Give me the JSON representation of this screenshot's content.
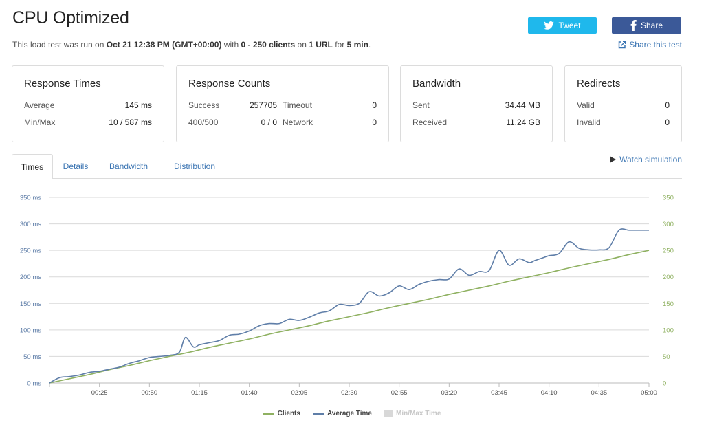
{
  "header": {
    "title": "CPU Optimized",
    "subtitle": {
      "pre": "This load test was run on ",
      "date": "Oct 21 12:38 PM (GMT+00:00)",
      "mid1": " with ",
      "clients": "0 - 250 clients",
      "mid2": " on ",
      "urls": "1 URL",
      "mid3": " for ",
      "duration": "5 min",
      "end": "."
    },
    "tweet_label": "Tweet",
    "share_label": "Share",
    "share_test_label": "Share this test",
    "tweet_color": "#1fb8ec",
    "share_color": "#3b5998"
  },
  "cards": {
    "times": {
      "title": "Response Times",
      "average_label": "Average",
      "average_value": "145 ms",
      "minmax_label": "Min/Max",
      "minmax_value": "10 / 587 ms"
    },
    "counts": {
      "title": "Response Counts",
      "success_label": "Success",
      "success_value": "257705",
      "timeout_label": "Timeout",
      "timeout_value": "0",
      "error_label": "400/500",
      "error_value": "0 / 0",
      "network_label": "Network",
      "network_value": "0"
    },
    "bandwidth": {
      "title": "Bandwidth",
      "sent_label": "Sent",
      "sent_value": "34.44 MB",
      "received_label": "Received",
      "received_value": "11.24 GB"
    },
    "redirects": {
      "title": "Redirects",
      "valid_label": "Valid",
      "valid_value": "0",
      "invalid_label": "Invalid",
      "invalid_value": "0"
    }
  },
  "tabs": [
    {
      "label": "Times",
      "active": true
    },
    {
      "label": "Details",
      "active": false
    },
    {
      "label": "Bandwidth",
      "active": false
    },
    {
      "label": "Distribution",
      "active": false
    }
  ],
  "watch_label": "Watch simulation",
  "chart_data": {
    "type": "line",
    "x_unit": "seconds",
    "x_ticks": [
      "00:25",
      "00:50",
      "01:15",
      "01:40",
      "02:05",
      "02:30",
      "02:55",
      "03:20",
      "03:45",
      "04:10",
      "04:35",
      "05:00"
    ],
    "x_tick_values": [
      25,
      50,
      75,
      100,
      125,
      150,
      175,
      200,
      225,
      250,
      275,
      300
    ],
    "xlim": [
      0,
      300
    ],
    "y_left_ticks": [
      "0 ms",
      "50 ms",
      "100 ms",
      "150 ms",
      "200 ms",
      "250 ms",
      "300 ms",
      "350 ms"
    ],
    "y_right_ticks": [
      "0",
      "50",
      "100",
      "150",
      "200",
      "250",
      "300",
      "350"
    ],
    "ylim": [
      0,
      350
    ],
    "grid": true,
    "legend_position": "bottom",
    "series": [
      {
        "name": "Clients",
        "color": "#8fb161",
        "axis": "right",
        "x": [
          0,
          10,
          20,
          30,
          40,
          50,
          60,
          70,
          80,
          90,
          100,
          110,
          120,
          130,
          140,
          150,
          160,
          170,
          180,
          190,
          200,
          210,
          220,
          230,
          240,
          250,
          260,
          270,
          280,
          290,
          300
        ],
        "y": [
          0,
          8,
          16,
          25,
          33,
          42,
          50,
          58,
          67,
          75,
          83,
          92,
          100,
          108,
          117,
          125,
          133,
          142,
          150,
          158,
          167,
          175,
          183,
          192,
          200,
          208,
          217,
          225,
          233,
          242,
          250
        ]
      },
      {
        "name": "Average Time",
        "color": "#5f7ea8",
        "axis": "left",
        "x": [
          0,
          5,
          10,
          15,
          20,
          25,
          30,
          35,
          40,
          45,
          50,
          55,
          60,
          65,
          68,
          72,
          75,
          80,
          85,
          90,
          95,
          100,
          105,
          110,
          115,
          120,
          125,
          130,
          135,
          140,
          145,
          150,
          155,
          160,
          165,
          170,
          175,
          180,
          185,
          190,
          195,
          200,
          205,
          210,
          215,
          220,
          225,
          230,
          235,
          240,
          243,
          247,
          250,
          255,
          260,
          265,
          270,
          275,
          280,
          285,
          290,
          295,
          300
        ],
        "y": [
          0,
          10,
          12,
          15,
          20,
          22,
          26,
          30,
          37,
          42,
          48,
          50,
          52,
          58,
          86,
          68,
          72,
          76,
          80,
          90,
          92,
          98,
          108,
          112,
          112,
          120,
          118,
          124,
          132,
          136,
          148,
          146,
          150,
          172,
          164,
          170,
          183,
          176,
          186,
          192,
          195,
          196,
          215,
          203,
          210,
          212,
          250,
          222,
          234,
          227,
          231,
          236,
          240,
          244,
          266,
          254,
          251,
          251,
          255,
          288,
          288,
          288,
          288
        ]
      }
    ],
    "legend": [
      {
        "label": "Clients",
        "color": "#8fb161",
        "muted": false
      },
      {
        "label": "Average Time",
        "color": "#5f7ea8",
        "muted": false
      },
      {
        "label": "Min/Max Time",
        "color": "#d8d8d8",
        "muted": true
      }
    ]
  }
}
